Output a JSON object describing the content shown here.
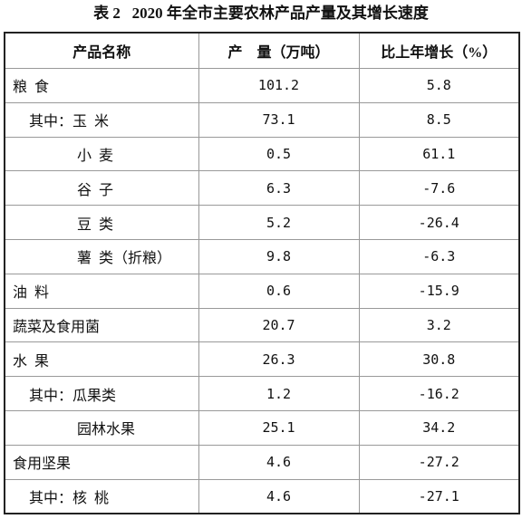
{
  "title": "表 2   2020 年全市主要农林产品产量及其增长速度",
  "table": {
    "header": [
      "产品名称",
      "产    量（万吨）",
      "比上年增长（%）"
    ],
    "rows": [
      [
        "粮  食",
        "101.2",
        "5.8"
      ],
      [
        "其中：玉  米",
        "73.1",
        "8.5"
      ],
      [
        "小  麦",
        "0.5",
        "61.1"
      ],
      [
        "谷  子",
        "6.3",
        "-7.6"
      ],
      [
        "豆  类",
        "5.2",
        "-26.4"
      ],
      [
        "薯  类（折粮）",
        "9.8",
        "-6.3"
      ],
      [
        "油  料",
        "0.6",
        "-15.9"
      ],
      [
        "蔬菜及食用菌",
        "20.7",
        "3.2"
      ],
      [
        "水  果",
        "26.3",
        "30.8"
      ],
      [
        "其中：瓜果类",
        "1.2",
        "-16.2"
      ],
      [
        "园林水果",
        "25.1",
        "34.2"
      ],
      [
        "食用坚果",
        "4.6",
        "-27.2"
      ],
      [
        "其中：核  桃",
        "4.6",
        "-27.1"
      ]
    ]
  }
}
